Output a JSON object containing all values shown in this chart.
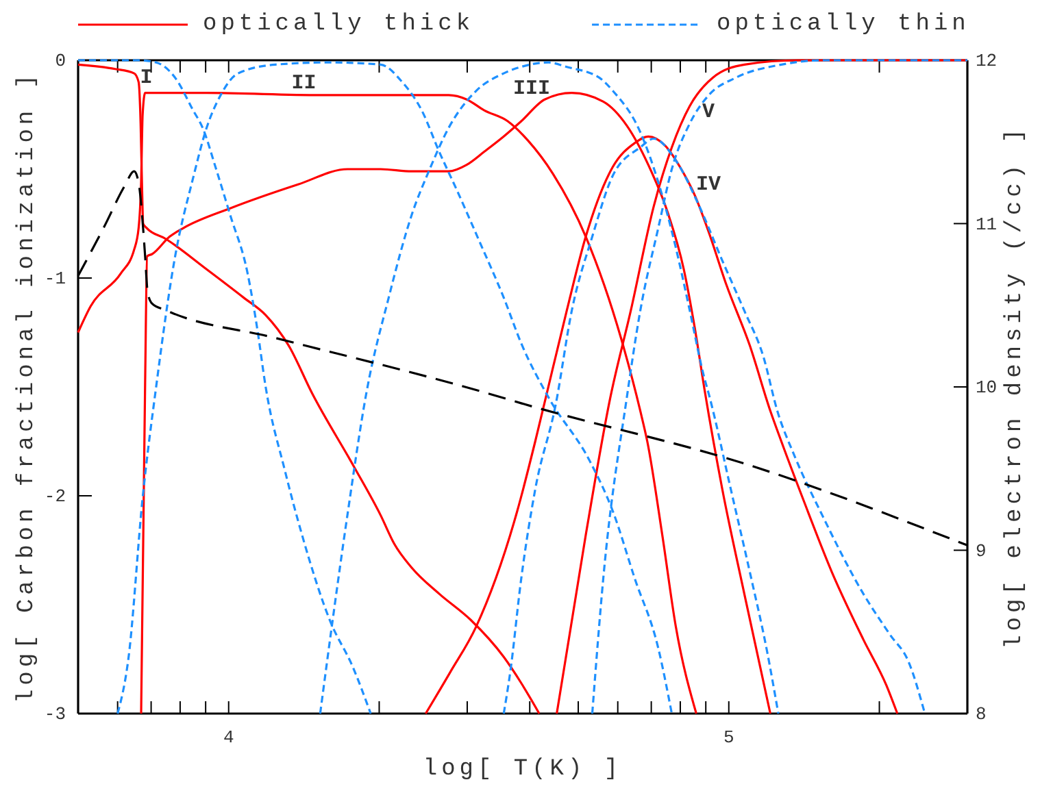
{
  "chart_data": {
    "type": "line",
    "xlabel": "log[ T(K) ]",
    "ylabel": "log[ Carbon fractional ionization ]",
    "y2label": "log[ electron density (/cc) ]",
    "xlim": [
      3.699,
      5.477
    ],
    "xticks": [
      {
        "value": 3.778,
        "label": null
      },
      {
        "value": 3.845,
        "label": null
      },
      {
        "value": 3.903,
        "label": null
      },
      {
        "value": 3.954,
        "label": null
      },
      4,
      {
        "value": 4.301,
        "label": null
      },
      {
        "value": 4.477,
        "label": null
      },
      {
        "value": 4.602,
        "label": null
      },
      {
        "value": 4.699,
        "label": null
      },
      {
        "value": 4.778,
        "label": null
      },
      {
        "value": 4.845,
        "label": null
      },
      {
        "value": 4.903,
        "label": null
      },
      {
        "value": 4.954,
        "label": null
      },
      5,
      {
        "value": 5.301,
        "label": null
      }
    ],
    "ylim": [
      -3,
      0
    ],
    "yticks": [
      -3,
      -2,
      -1,
      0
    ],
    "y2lim": [
      8,
      12
    ],
    "y2ticks": [
      8,
      9,
      10,
      11,
      12
    ],
    "legend": "top",
    "annotations": [
      "I",
      "II",
      "III",
      "V",
      "IV"
    ],
    "series": [
      {
        "name": "optically thick",
        "color": "#ff0000",
        "line_style": "solid",
        "x": [
          3.699,
          3.773,
          3.811,
          3.82,
          3.824,
          3.827,
          3.829,
          3.836,
          3.874,
          3.956,
          4.03,
          4.074,
          4.12,
          4.167,
          4.249,
          4.304,
          4.331,
          4.366,
          4.421,
          4.484,
          4.55,
          4.585,
          4.621
        ],
        "values": [
          -0.02,
          -0.04,
          -0.06,
          -0.1,
          -0.29,
          -0.6,
          -0.75,
          -0.77,
          -0.82,
          -0.96,
          -1.09,
          -1.17,
          -1.31,
          -1.53,
          -1.86,
          -2.09,
          -2.22,
          -2.33,
          -2.45,
          -2.57,
          -2.74,
          -2.86,
          -3
        ]
      },
      {
        "color": "#ff0000",
        "line_style": "solid",
        "x": [
          3.699,
          3.724,
          3.784,
          3.811,
          3.82,
          3.825,
          3.828,
          3.833,
          3.956,
          4.183,
          4.44,
          4.476,
          4.511,
          4.558,
          4.599,
          4.648,
          4.714,
          4.785,
          4.823,
          4.837,
          4.867,
          4.894,
          4.935
        ],
        "values": [
          -1.25,
          -1.13,
          -0.98,
          -0.87,
          -0.77,
          -0.56,
          -0.25,
          -0.15,
          -0.15,
          -0.16,
          -0.16,
          -0.18,
          -0.23,
          -0.28,
          -0.37,
          -0.52,
          -0.81,
          -1.28,
          -1.61,
          -1.75,
          -2.18,
          -2.6,
          -3
        ]
      },
      {
        "color": "#ff0000",
        "line_style": "solid",
        "x": [
          3.825,
          3.833,
          3.837,
          3.847,
          3.882,
          3.91,
          4.003,
          4.139,
          4.238,
          4.304,
          4.366,
          4.44,
          4.476,
          4.511,
          4.55,
          4.585,
          4.632,
          4.686,
          4.749,
          4.796,
          4.839,
          4.878,
          4.91,
          4.932,
          4.952,
          4.987,
          5.031,
          5.083
        ],
        "values": [
          -3,
          -1.48,
          -0.9,
          -0.89,
          -0.81,
          -0.77,
          -0.68,
          -0.57,
          -0.5,
          -0.5,
          -0.51,
          -0.51,
          -0.48,
          -0.42,
          -0.35,
          -0.28,
          -0.18,
          -0.15,
          -0.19,
          -0.3,
          -0.48,
          -0.7,
          -0.96,
          -1.23,
          -1.52,
          -1.97,
          -2.45,
          -3
        ]
      },
      {
        "color": "#ff0000",
        "line_style": "solid",
        "x": [
          4.394,
          4.443,
          4.495,
          4.577,
          4.613,
          4.634,
          4.676,
          4.714,
          4.768,
          4.812,
          4.839,
          4.872,
          4.905,
          4.932,
          4.96,
          4.995,
          5.042,
          5.083,
          5.105,
          5.151,
          5.206,
          5.269,
          5.315,
          5.337
        ],
        "values": [
          -3,
          -2.81,
          -2.6,
          -2.07,
          -1.75,
          -1.55,
          -1.15,
          -0.81,
          -0.49,
          -0.38,
          -0.35,
          -0.39,
          -0.5,
          -0.62,
          -0.79,
          -1.03,
          -1.31,
          -1.61,
          -1.75,
          -2.03,
          -2.35,
          -2.66,
          -2.87,
          -3
        ]
      },
      {
        "color": "#ff0000",
        "line_style": "solid",
        "x": [
          4.656,
          4.714,
          4.763,
          4.804,
          4.85,
          4.886,
          4.922,
          4.968,
          5.031,
          5.14,
          5.477
        ],
        "values": [
          -3,
          -2.18,
          -1.55,
          -1.15,
          -0.67,
          -0.4,
          -0.21,
          -0.08,
          -0.02,
          0,
          0
        ]
      },
      {
        "name": "optically thin",
        "color": "#1e90ff",
        "line_style": "dashed",
        "x": [
          3.699,
          3.82,
          3.855,
          3.893,
          3.929,
          3.948,
          3.975,
          4.003,
          4.038,
          4.057,
          4.074,
          4.112,
          4.148,
          4.202,
          4.249,
          4.284
        ],
        "values": [
          0,
          0,
          -0.01,
          -0.08,
          -0.23,
          -0.31,
          -0.5,
          -0.71,
          -0.98,
          -1.23,
          -1.5,
          -1.88,
          -2.19,
          -2.57,
          -2.79,
          -3
        ]
      },
      {
        "color": "#1e90ff",
        "line_style": "dashed",
        "x": [
          3.778,
          3.8,
          3.828,
          3.855,
          3.893,
          3.929,
          3.956,
          3.984,
          4.019,
          4.093,
          4.202,
          4.304,
          4.347,
          4.386,
          4.421,
          4.457,
          4.503,
          4.55,
          4.585,
          4.64,
          4.722,
          4.768,
          4.812,
          4.859,
          4.886
        ],
        "values": [
          -3,
          -2.74,
          -2.01,
          -1.5,
          -0.9,
          -0.54,
          -0.31,
          -0.16,
          -0.06,
          -0.02,
          -0.01,
          -0.02,
          -0.1,
          -0.23,
          -0.42,
          -0.6,
          -0.84,
          -1.09,
          -1.3,
          -1.55,
          -1.84,
          -2.07,
          -2.38,
          -2.7,
          -3
        ]
      },
      {
        "color": "#1e90ff",
        "line_style": "dashed",
        "x": [
          4.183,
          4.208,
          4.238,
          4.276,
          4.32,
          4.366,
          4.402,
          4.44,
          4.495,
          4.55,
          4.585,
          4.64,
          4.675,
          4.741,
          4.768,
          4.823,
          4.859,
          4.894,
          4.922,
          4.949,
          4.962,
          5.004,
          5.042,
          5.077,
          5.099
        ],
        "values": [
          -3,
          -2.57,
          -2.08,
          -1.52,
          -1.09,
          -0.71,
          -0.5,
          -0.31,
          -0.14,
          -0.06,
          -0.03,
          -0.01,
          -0.03,
          -0.08,
          -0.14,
          -0.33,
          -0.56,
          -0.86,
          -1.15,
          -1.44,
          -1.55,
          -1.97,
          -2.35,
          -2.72,
          -3
        ]
      },
      {
        "color": "#1e90ff",
        "line_style": "dashed",
        "x": [
          4.55,
          4.563,
          4.585,
          4.613,
          4.654,
          4.686,
          4.727,
          4.768,
          4.823,
          4.85,
          4.894,
          4.941,
          4.987,
          5.031,
          5.069,
          5.097,
          5.132,
          5.187,
          5.269,
          5.323,
          5.359,
          5.392
        ],
        "values": [
          -3,
          -2.81,
          -2.38,
          -1.97,
          -1.58,
          -1.15,
          -0.81,
          -0.53,
          -0.4,
          -0.36,
          -0.46,
          -0.67,
          -0.92,
          -1.15,
          -1.36,
          -1.61,
          -1.82,
          -2.09,
          -2.45,
          -2.64,
          -2.76,
          -3
        ]
      },
      {
        "color": "#1e90ff",
        "line_style": "dashed",
        "x": [
          4.727,
          4.749,
          4.796,
          4.823,
          4.859,
          4.886,
          4.922,
          4.96,
          5.014,
          5.105,
          5.187,
          5.477
        ],
        "values": [
          -3,
          -2.38,
          -1.55,
          -1.15,
          -0.77,
          -0.5,
          -0.29,
          -0.16,
          -0.08,
          -0.02,
          0,
          0
        ]
      },
      {
        "color": "#000000",
        "line_style": "dashed",
        "axis": "y2",
        "x": [
          3.699,
          3.751,
          3.792,
          3.811,
          3.82,
          3.829,
          3.833,
          3.838,
          3.847,
          3.874,
          4.093,
          4.53,
          4.585,
          5.042,
          5.477
        ],
        "values": [
          10.68,
          10.98,
          11.23,
          11.32,
          11.25,
          10.97,
          10.8,
          10.58,
          10.51,
          10.47,
          10.3,
          9.95,
          9.9,
          9.52,
          9.03
        ]
      }
    ]
  }
}
